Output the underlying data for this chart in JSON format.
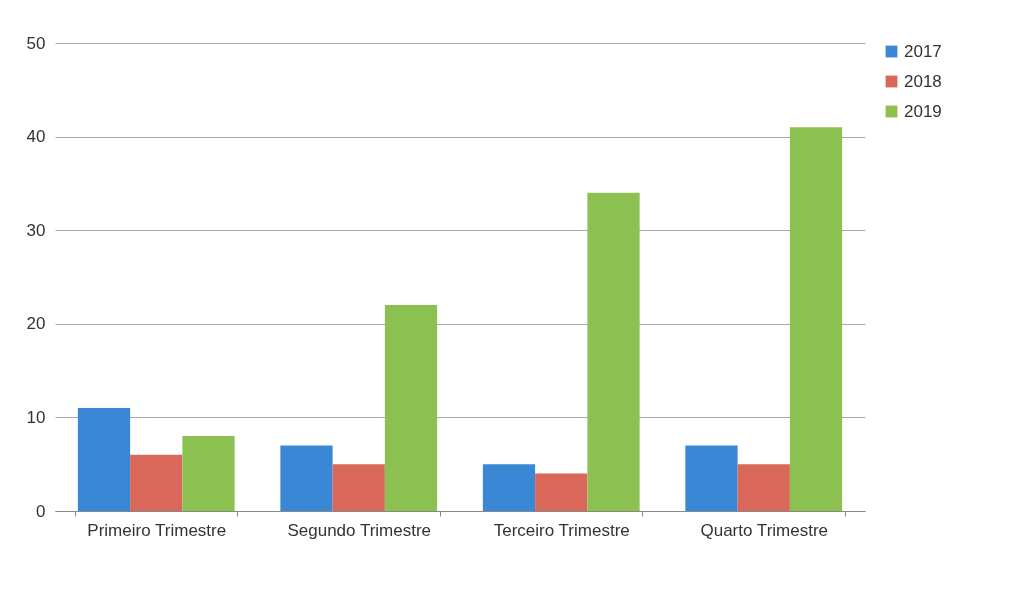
{
  "chart_data": {
    "type": "bar",
    "categories": [
      "Primeiro Trimestre",
      "Segundo Trimestre",
      "Terceiro Trimestre",
      "Quarto Trimestre"
    ],
    "series": [
      {
        "name": "2017",
        "color": "#3a87d6",
        "values": [
          11,
          7,
          5,
          7
        ]
      },
      {
        "name": "2018",
        "color": "#d9685a",
        "values": [
          6,
          5,
          4,
          5
        ]
      },
      {
        "name": "2019",
        "color": "#8cc152",
        "values": [
          8,
          22,
          34,
          41
        ]
      }
    ],
    "ylim": [
      0,
      50
    ],
    "yticks": [
      0,
      10,
      20,
      30,
      40,
      50
    ],
    "grid": "y",
    "legend": "right"
  }
}
